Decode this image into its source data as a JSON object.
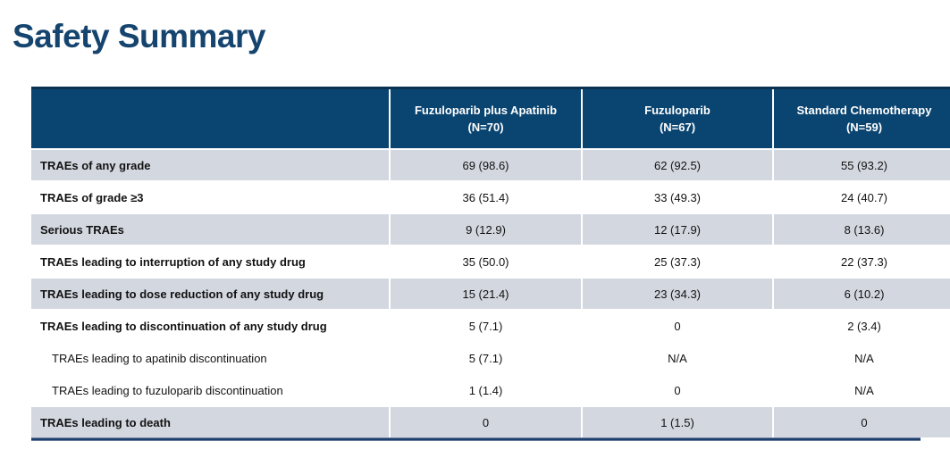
{
  "page": {
    "title": "Safety Summary"
  },
  "colors": {
    "title_text": "#15456F",
    "header_bg": "#0A4470",
    "header_text": "#FFFFFF",
    "shaded_row_bg": "#D3D7DF",
    "body_text": "#121212",
    "table_top_border": "#0B3152",
    "table_bottom_border": "#1D3F6E",
    "separator": "#FFFFFF"
  },
  "table": {
    "columns": [
      {
        "name": "",
        "n": ""
      },
      {
        "name": "Fuzuloparib plus Apatinib",
        "n": "(N=70)"
      },
      {
        "name": "Fuzuloparib",
        "n": "(N=67)"
      },
      {
        "name": "Standard Chemotherapy",
        "n": "(N=59)"
      }
    ],
    "rows": [
      {
        "label": "TRAEs of any grade",
        "values": [
          "69 (98.6)",
          "62 (92.5)",
          "55 (93.2)"
        ],
        "indent": false,
        "shaded": true
      },
      {
        "label": "TRAEs of grade ≥3",
        "values": [
          "36 (51.4)",
          "33 (49.3)",
          "24 (40.7)"
        ],
        "indent": false,
        "shaded": false
      },
      {
        "label": "Serious TRAEs",
        "values": [
          "9 (12.9)",
          "12 (17.9)",
          "8 (13.6)"
        ],
        "indent": false,
        "shaded": true
      },
      {
        "label": "TRAEs leading to interruption of any study drug",
        "values": [
          "35 (50.0)",
          "25 (37.3)",
          "22 (37.3)"
        ],
        "indent": false,
        "shaded": false
      },
      {
        "label": "TRAEs leading to dose reduction of any study drug",
        "values": [
          "15 (21.4)",
          "23 (34.3)",
          "6 (10.2)"
        ],
        "indent": false,
        "shaded": true
      },
      {
        "label": "TRAEs leading to discontinuation of any study drug",
        "values": [
          "5 (7.1)",
          "0",
          "2 (3.4)"
        ],
        "indent": false,
        "shaded": false
      },
      {
        "label": "TRAEs leading to apatinib discontinuation",
        "values": [
          "5 (7.1)",
          "N/A",
          "N/A"
        ],
        "indent": true,
        "shaded": false
      },
      {
        "label": "TRAEs leading to fuzuloparib discontinuation",
        "values": [
          "1 (1.4)",
          "0",
          "N/A"
        ],
        "indent": true,
        "shaded": false
      },
      {
        "label": "TRAEs leading to death",
        "values": [
          "0",
          "1 (1.5)",
          "0"
        ],
        "indent": false,
        "shaded": true
      }
    ]
  }
}
